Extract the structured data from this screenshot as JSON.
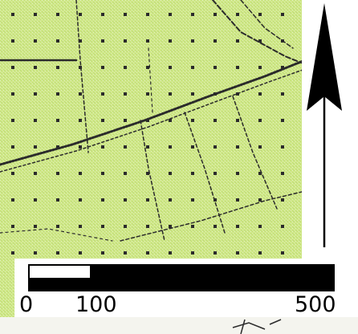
{
  "map": {
    "background_color": "#c6e27a",
    "linework_color": "#2b2b2b",
    "dark_area_color": "#1b1b1b"
  },
  "north_arrow": {
    "icon": "north-arrow-icon",
    "color": "#000000",
    "panel_color": "#ffffff"
  },
  "scale_bar": {
    "labels": [
      "0",
      "100",
      "500"
    ],
    "breaks": [
      0,
      100,
      500
    ],
    "bar_color": "#000000",
    "panel_color": "#ffffff"
  }
}
